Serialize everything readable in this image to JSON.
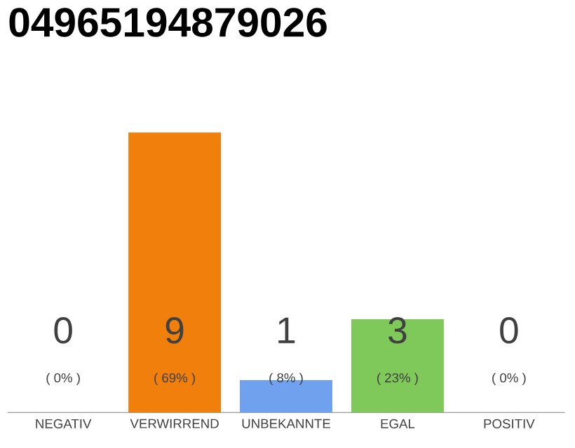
{
  "chart_data": {
    "type": "bar",
    "title": "04965194879026",
    "categories": [
      "NEGATIV",
      "VERWIRREND",
      "UNBEKANNTE",
      "EGAL",
      "POSITIV"
    ],
    "values": [
      0,
      69,
      8,
      23,
      0
    ],
    "colors": [
      "#d9d9d9",
      "#f07f0c",
      "#6fa1ef",
      "#7fc95b",
      "#d9d9d9"
    ],
    "value_labels": [
      "( 0% )",
      "( 69% )",
      "( 8% )",
      "( 23% )",
      "( 0% )"
    ],
    "annotations": [
      "0",
      "9",
      "1",
      "3",
      "0"
    ]
  }
}
